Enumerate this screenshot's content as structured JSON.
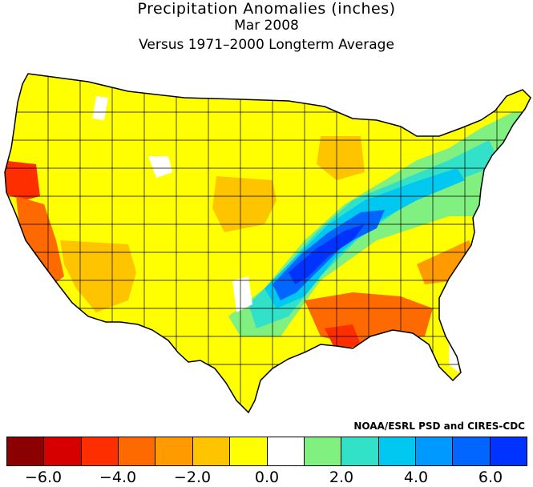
{
  "title": "Precipitation Anomalies (inches)",
  "subtitle_date": "Mar 2008",
  "subtitle_base": "Versus 1971–2000 Longterm Average",
  "credit": "NOAA/ESRL PSD and CIRES-CDC",
  "legend": {
    "colors": [
      "#8b0000",
      "#d60000",
      "#ff2e00",
      "#ff6a00",
      "#ff9a00",
      "#ffc400",
      "#ffff00",
      "#ffffff",
      "#80f080",
      "#33e0c8",
      "#00c8f0",
      "#0099ff",
      "#0066ff",
      "#0033ff"
    ],
    "ticks": [
      "−6.0",
      "−4.0",
      "−2.0",
      "0.0",
      "2.0",
      "4.0",
      "6.0"
    ]
  },
  "map_colors": {
    "yellow": "#ffff00",
    "gold": "#ffc400",
    "orange": "#ff9a00",
    "deep_orange": "#ff6a00",
    "red_orange": "#ff2e00",
    "red": "#d60000",
    "white": "#ffffff",
    "green": "#80f080",
    "teal": "#33e0c8",
    "cyan": "#00c8f0",
    "sky": "#0099ff",
    "blue": "#0066ff",
    "deep_blue": "#0033ff"
  }
}
